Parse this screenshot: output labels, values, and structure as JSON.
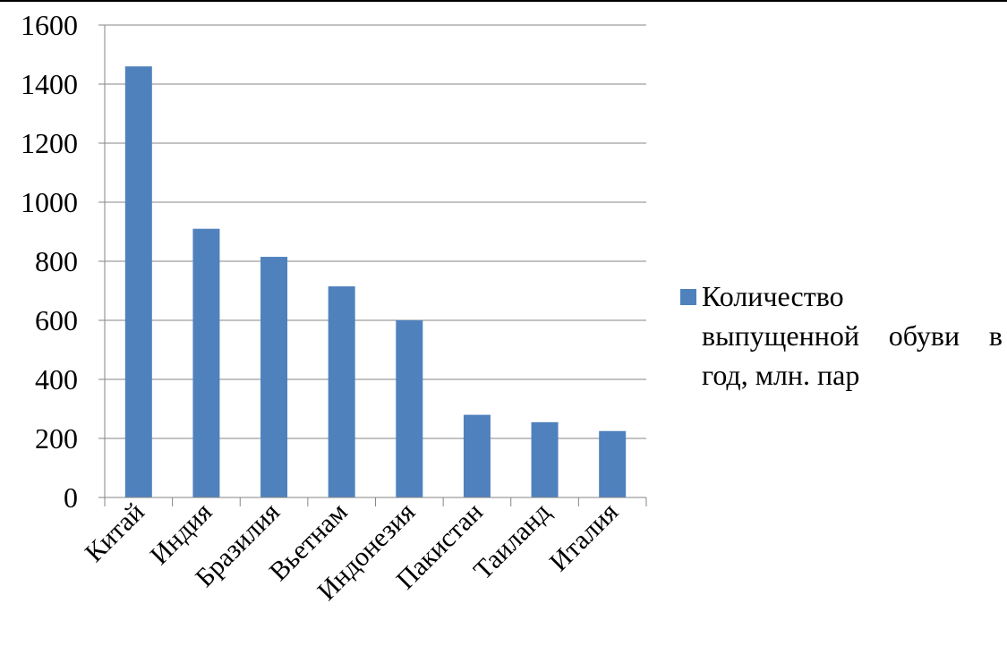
{
  "chart_data": {
    "type": "bar",
    "categories": [
      "Китай",
      "Индия",
      "Бразилия",
      "Вьетнам",
      "Индонезия",
      "Пакистан",
      "Таиланд",
      "Италия"
    ],
    "series": [
      {
        "name": "Количество выпущенной обуви в год, млн. пар",
        "values": [
          1460,
          910,
          815,
          715,
          600,
          280,
          255,
          225
        ],
        "color": "#4F81BD"
      }
    ],
    "title": "",
    "xlabel": "",
    "ylabel": "",
    "ylim": [
      0,
      1600
    ],
    "yticks": [
      0,
      200,
      400,
      600,
      800,
      1000,
      1200,
      1400,
      1600
    ],
    "grid": true,
    "legend_position": "right"
  }
}
